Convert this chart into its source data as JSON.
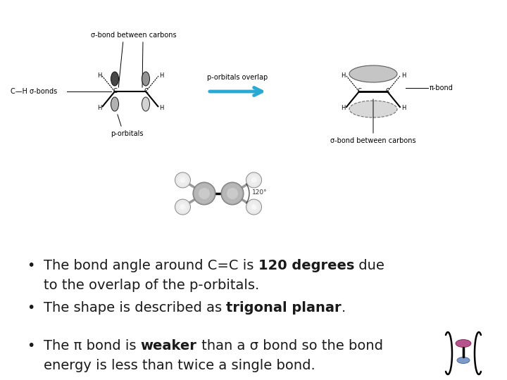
{
  "background_color": "#ffffff",
  "figsize": [
    7.2,
    5.4
  ],
  "dpi": 100,
  "bullet1_normal1": "The bond angle around C=C is ",
  "bullet1_bold": "120 degrees",
  "bullet1_normal2": " due",
  "bullet1_line2": "to the overlap of the p-orbitals.",
  "bullet2_normal1": "The shape is described as ",
  "bullet2_bold": "trigonal planar",
  "bullet2_normal2": ".",
  "bullet3_normal1": "The π bond is ",
  "bullet3_bold": "weaker",
  "bullet3_normal2": " than a σ bond so the bond",
  "bullet3_line2": "energy is less than twice a single bond.",
  "fontsize_bullet": 14,
  "text_color": "#1a1a1a",
  "label_fontsize": 7
}
